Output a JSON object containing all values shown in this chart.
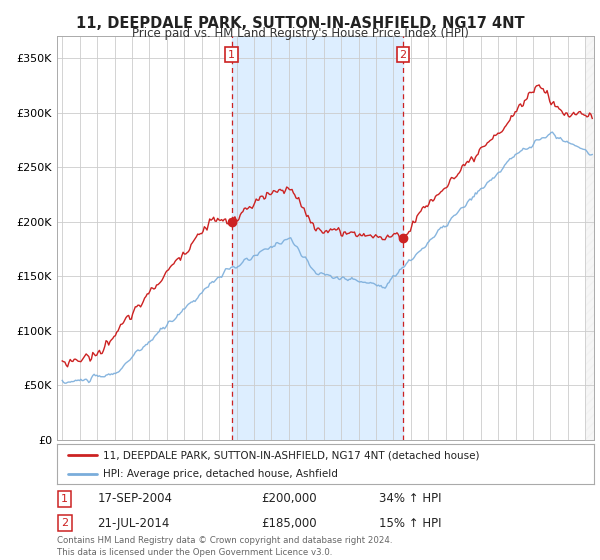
{
  "title": "11, DEEPDALE PARK, SUTTON-IN-ASHFIELD, NG17 4NT",
  "subtitle": "Price paid vs. HM Land Registry's House Price Index (HPI)",
  "legend_line1": "11, DEEPDALE PARK, SUTTON-IN-ASHFIELD, NG17 4NT (detached house)",
  "legend_line2": "HPI: Average price, detached house, Ashfield",
  "annotation1_label": "1",
  "annotation1_date": "17-SEP-2004",
  "annotation1_price": "£200,000",
  "annotation1_hpi": "34% ↑ HPI",
  "annotation2_label": "2",
  "annotation2_date": "21-JUL-2014",
  "annotation2_price": "£185,000",
  "annotation2_hpi": "15% ↑ HPI",
  "footer": "Contains HM Land Registry data © Crown copyright and database right 2024.\nThis data is licensed under the Open Government Licence v3.0.",
  "red_color": "#cc2222",
  "blue_color": "#7aaddb",
  "bg_color": "#ffffff",
  "plot_bg": "#ffffff",
  "shaded_bg": "#ddeeff",
  "grid_color": "#cccccc",
  "ylim": [
    0,
    370000
  ],
  "yticks": [
    0,
    50000,
    100000,
    150000,
    200000,
    250000,
    300000,
    350000
  ],
  "sale1_x": 2004.72,
  "sale1_y": 200000,
  "sale2_x": 2014.55,
  "sale2_y": 185000,
  "shade_x1": 2004.72,
  "shade_x2": 2014.55,
  "xmin": 1995.0,
  "xmax": 2025.5
}
